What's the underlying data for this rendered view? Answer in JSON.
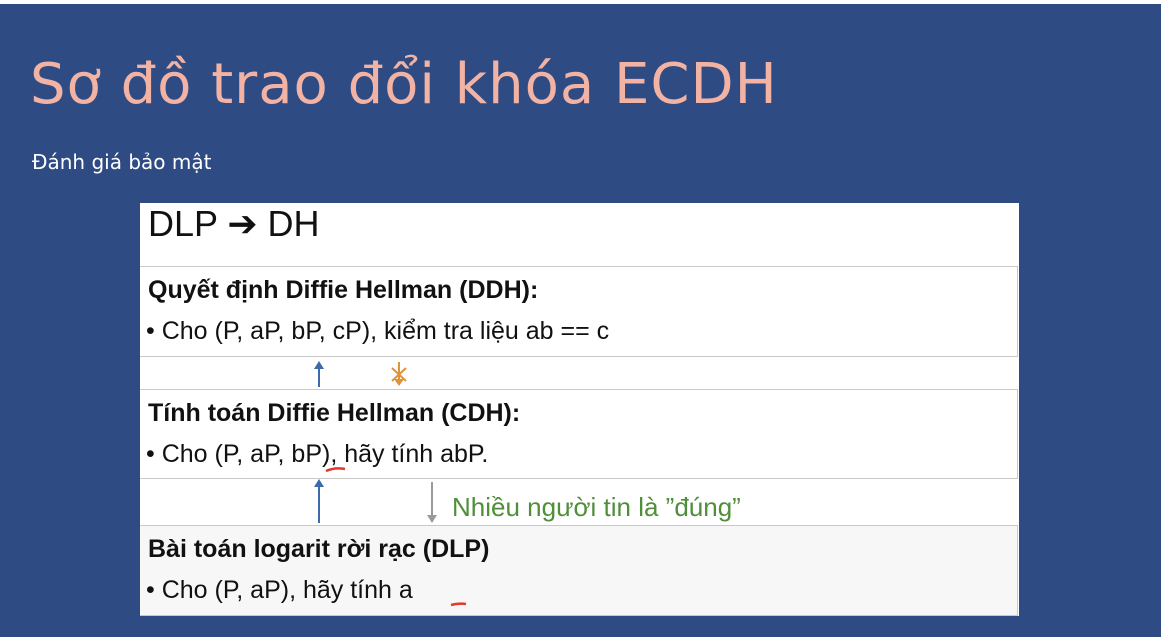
{
  "slide": {
    "title": "Sơ đồ trao đổi khóa ECDH",
    "subtitle": "Đánh giá bảo mật"
  },
  "panel": {
    "heading": "DLP ➔ DH",
    "ddh": {
      "title": "Quyết định Diffie Hellman (DDH):",
      "bullet": "• Cho (P, aP, bP, cP), kiểm tra liệu   ab == c"
    },
    "cdh": {
      "title": "Tính toán Diffie Hellman (CDH):",
      "bullet": "• Cho (P, aP, bP), hãy tính abP."
    },
    "dlp": {
      "title": "Bài toán logarit rời rạc (DLP)",
      "bullet": "• Cho (P, aP), hãy tính a"
    },
    "note": "Nhiều người tin là ”đúng”"
  },
  "colors": {
    "background": "#2e4b83",
    "title": "#f2b2a4",
    "note": "#4f8f3a",
    "arrow_blue": "#3d6aa8",
    "arrow_orange": "#e0923a",
    "arrow_gray": "#9a9a9a",
    "annotation_red": "#e23a2a"
  }
}
